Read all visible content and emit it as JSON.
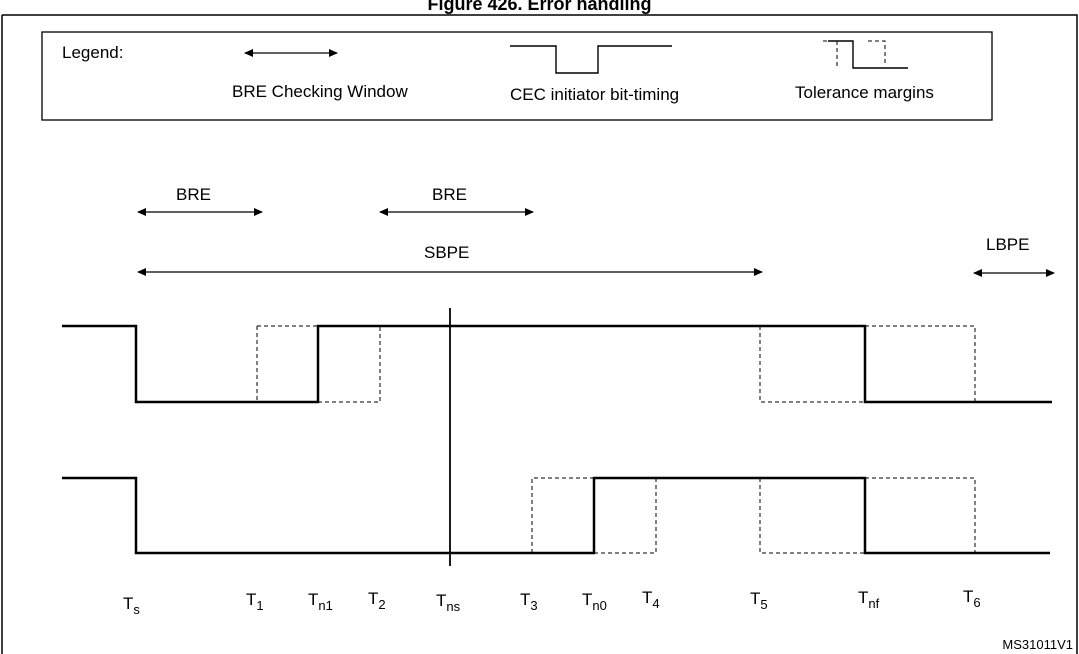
{
  "title": "Figure 426. Error handling",
  "legend": {
    "heading": "Legend:",
    "bre_window": "BRE Checking Window",
    "bit_timing": "CEC initiator bit-timing",
    "tolerance": "Tolerance margins"
  },
  "windows": {
    "bre1": "BRE",
    "bre2": "BRE",
    "sbpe": "SBPE",
    "lbpe": "LBPE"
  },
  "time_labels": [
    {
      "main": "T",
      "sub": "s"
    },
    {
      "main": "T",
      "sub": "1"
    },
    {
      "main": "T",
      "sub": "n1"
    },
    {
      "main": "T",
      "sub": "2"
    },
    {
      "main": "T",
      "sub": "ns"
    },
    {
      "main": "T",
      "sub": "3"
    },
    {
      "main": "T",
      "sub": "n0"
    },
    {
      "main": "T",
      "sub": "4"
    },
    {
      "main": "T",
      "sub": "5"
    },
    {
      "main": "T",
      "sub": "nf"
    },
    {
      "main": "T",
      "sub": "6"
    }
  ],
  "reference": "MS31011V1"
}
